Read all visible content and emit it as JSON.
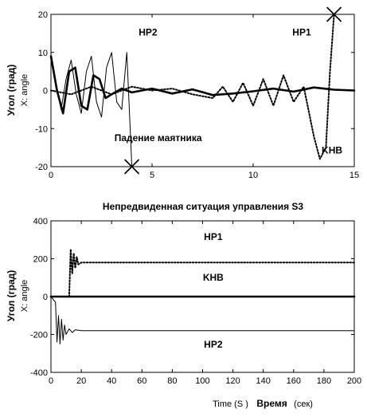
{
  "chart_data": [
    {
      "type": "line",
      "title": "",
      "xlabel": "",
      "ylabel_main": "Угол (град)",
      "ylabel_sub": "X: angle",
      "xlim": [
        0,
        15
      ],
      "ylim": [
        -20,
        20
      ],
      "xticks": [
        0,
        5,
        10,
        15
      ],
      "yticks": [
        20,
        10,
        0,
        -10,
        -20
      ],
      "grid": false,
      "series": [
        {
          "name": "HP2",
          "style": "thin-solid",
          "x": [
            0,
            0.25,
            0.5,
            0.75,
            1.0,
            1.25,
            1.5,
            1.75,
            2.0,
            2.25,
            2.5,
            2.75,
            3.0,
            3.25,
            3.5,
            3.75,
            4.0
          ],
          "values": [
            9,
            2,
            -5,
            3,
            8,
            -1,
            -6,
            5,
            9,
            -3,
            -7,
            6,
            10,
            -3,
            -5,
            10,
            -20
          ]
        },
        {
          "name": "KHB",
          "style": "thick-solid",
          "x": [
            0,
            0.3,
            0.6,
            0.9,
            1.2,
            1.5,
            1.8,
            2.1,
            2.4,
            2.7,
            3.0,
            3.5,
            4.0,
            5,
            6,
            7,
            8,
            9,
            10,
            11,
            12,
            13,
            14,
            15
          ],
          "values": [
            9,
            0,
            -6,
            5,
            6,
            -4,
            -5,
            4,
            3,
            -2,
            -1,
            0.5,
            -0.5,
            0.5,
            -0.8,
            0.3,
            -1.2,
            -0.8,
            -0.2,
            0.5,
            -0.3,
            0.8,
            0.2,
            0
          ]
        },
        {
          "name": "HP1",
          "style": "dotted",
          "x": [
            0,
            1,
            2,
            3,
            4,
            5,
            6,
            7,
            8,
            8.5,
            9,
            9.5,
            10,
            10.5,
            11,
            11.5,
            12,
            12.5,
            13,
            13.3,
            13.6,
            13.8,
            14
          ],
          "values": [
            0,
            -1,
            1,
            -1,
            1,
            0,
            0.5,
            -1,
            -2,
            1,
            -3,
            2,
            -4,
            3,
            -4,
            4,
            -3,
            1,
            -12,
            -18,
            -15,
            5,
            20
          ]
        }
      ],
      "annotations": [
        {
          "text": "HP2",
          "x": 4.8,
          "y": 14.5
        },
        {
          "text": "HP1",
          "x": 12.4,
          "y": 14.5
        },
        {
          "text": "Падение маятника",
          "x": 5.3,
          "y": -13.3
        },
        {
          "text": "KHB",
          "x": 13.9,
          "y": -16.5
        }
      ],
      "markers": [
        {
          "type": "x",
          "x": 4.0,
          "y": -20
        },
        {
          "type": "x",
          "x": 14.0,
          "y": 20
        }
      ]
    },
    {
      "type": "line",
      "title": "Непредвиденная ситуация управления S3",
      "xlabel_parts": [
        "Time (S )",
        "Время",
        "(сек)"
      ],
      "ylabel_main": "Угол (град)",
      "ylabel_sub": "X: angle",
      "xlim": [
        0,
        200
      ],
      "ylim": [
        -400,
        400
      ],
      "xticks": [
        0,
        20,
        40,
        60,
        80,
        100,
        120,
        140,
        160,
        180,
        200
      ],
      "yticks": [
        400,
        200,
        0,
        -200,
        -400
      ],
      "grid": false,
      "series": [
        {
          "name": "HP1",
          "style": "dotted",
          "x": [
            0,
            12,
            13,
            14,
            15,
            16,
            17,
            18,
            20,
            200
          ],
          "values": [
            0,
            0,
            250,
            120,
            230,
            150,
            210,
            170,
            180,
            180
          ]
        },
        {
          "name": "KHB",
          "style": "thick-solid",
          "x": [
            0,
            200
          ],
          "values": [
            0,
            0
          ]
        },
        {
          "name": "HP2",
          "style": "thin-solid",
          "x": [
            0,
            3,
            4,
            5,
            6,
            7,
            8,
            9,
            10,
            12,
            14,
            16,
            20,
            200
          ],
          "values": [
            0,
            -30,
            -240,
            -100,
            -250,
            -120,
            -230,
            -150,
            -200,
            -170,
            -190,
            -175,
            -180,
            -180
          ]
        }
      ],
      "annotations": [
        {
          "text": "HP1",
          "x": 107,
          "y": 300
        },
        {
          "text": "KHB",
          "x": 107,
          "y": 84
        },
        {
          "text": "HP2",
          "x": 107,
          "y": -270
        }
      ]
    }
  ]
}
